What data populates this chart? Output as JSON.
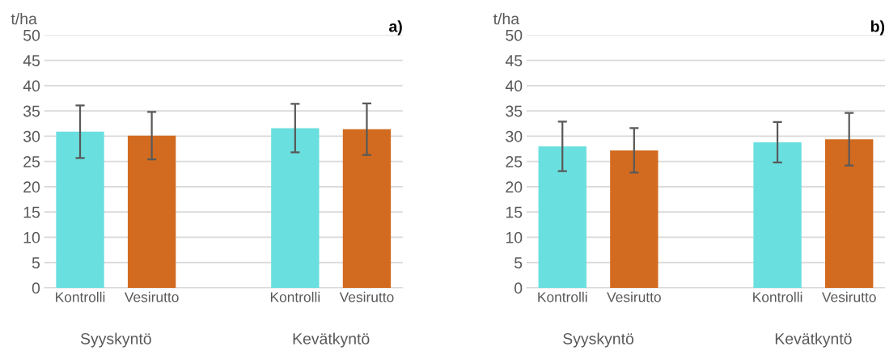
{
  "chart_data": [
    {
      "type": "bar",
      "title": "a)",
      "ylabel": "t/ha",
      "categories": [
        "Kontrolli",
        "Vesirutto",
        null,
        "Kontrolli",
        "Vesirutto"
      ],
      "values": [
        30.9,
        30.1,
        null,
        31.6,
        31.4
      ],
      "errors": [
        5.2,
        4.7,
        null,
        4.8,
        5.1
      ],
      "colors": [
        "#6adfdf",
        "#d26b20",
        null,
        "#6adfdf",
        "#d26b20"
      ],
      "ylim": [
        0,
        50
      ],
      "yticks": [
        0,
        5,
        10,
        15,
        20,
        25,
        30,
        35,
        40,
        45,
        50
      ],
      "grid": "y",
      "annotations": [
        "Syyskyntö",
        "Kevätkyntö"
      ]
    },
    {
      "type": "bar",
      "title": "b)",
      "ylabel": "t/ha",
      "categories": [
        "Kontrolli",
        "Vesirutto",
        null,
        "Kontrolli",
        "Vesirutto"
      ],
      "values": [
        28.0,
        27.2,
        null,
        28.8,
        29.4
      ],
      "errors": [
        4.9,
        4.4,
        null,
        4.0,
        5.2
      ],
      "colors": [
        "#6adfdf",
        "#d26b20",
        null,
        "#6adfdf",
        "#d26b20"
      ],
      "ylim": [
        0,
        50
      ],
      "yticks": [
        0,
        5,
        10,
        15,
        20,
        25,
        30,
        35,
        40,
        45,
        50
      ],
      "grid": "y",
      "annotations": [
        "Syyskyntö",
        "Kevätkyntö"
      ]
    }
  ]
}
